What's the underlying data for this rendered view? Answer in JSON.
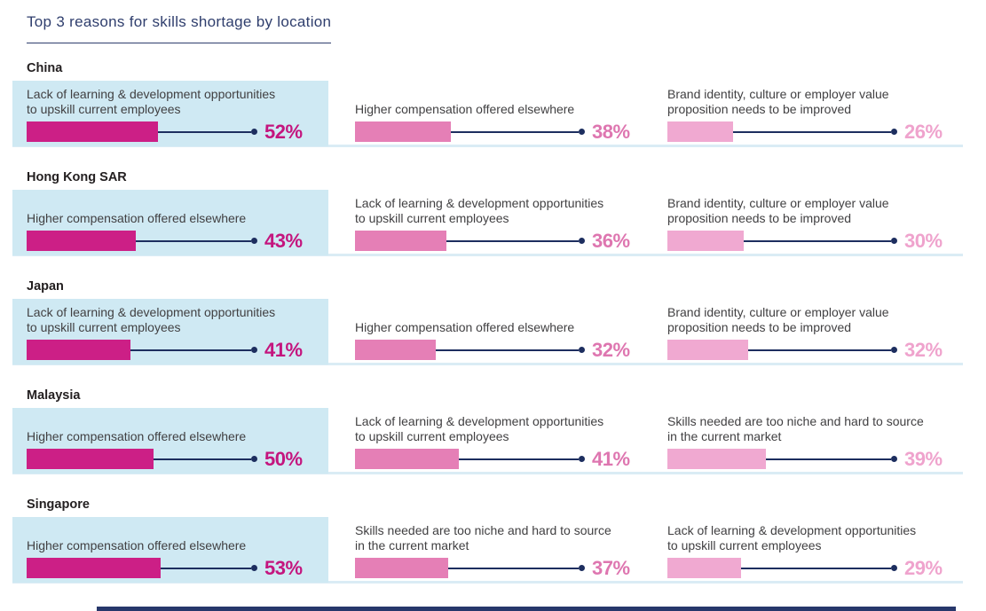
{
  "header": {
    "title": "Top 3 reasons for skills shortage by location"
  },
  "colors": {
    "title_navy": "#2F3E6D",
    "connector_navy": "#1D2E5F",
    "highlight_panel_blue": "#CFE9F3",
    "separator_blue": "#DAECF5",
    "bar_colors": [
      "#CC1F86",
      "#E57FB6",
      "#F0A9D1"
    ],
    "pct_colors": [
      "#C4157E",
      "#DE76B0",
      "#EFA3CD"
    ]
  },
  "chart_data": {
    "type": "bar",
    "title": "Top 3 reasons for skills shortage by location",
    "unit": "%",
    "value_range": [
      0,
      100
    ],
    "orientation": "horizontal",
    "legend": "none",
    "locations": [
      {
        "name": "China",
        "reasons": [
          {
            "label": "Lack of learning & development opportunities to upskill current employees",
            "value": 52,
            "display": "52%"
          },
          {
            "label": "Higher compensation offered elsewhere",
            "value": 38,
            "display": "38%"
          },
          {
            "label": "Brand identity, culture or employer value proposition needs to be improved",
            "value": 26,
            "display": "26%"
          }
        ]
      },
      {
        "name": "Hong Kong SAR",
        "reasons": [
          {
            "label": "Higher compensation offered elsewhere",
            "value": 43,
            "display": "43%"
          },
          {
            "label": "Lack of learning & development opportunities to upskill current employees",
            "value": 36,
            "display": "36%"
          },
          {
            "label": "Brand identity, culture or employer value proposition needs to be improved",
            "value": 30,
            "display": "30%"
          }
        ]
      },
      {
        "name": "Japan",
        "reasons": [
          {
            "label": "Lack of learning & development opportunities to upskill current employees",
            "value": 41,
            "display": "41%"
          },
          {
            "label": "Higher compensation offered elsewhere",
            "value": 32,
            "display": "32%"
          },
          {
            "label": "Brand identity, culture or employer value proposition needs to be improved",
            "value": 32,
            "display": "32%"
          }
        ]
      },
      {
        "name": "Malaysia",
        "reasons": [
          {
            "label": "Higher compensation offered elsewhere",
            "value": 50,
            "display": "50%"
          },
          {
            "label": "Lack of learning & development opportunities to upskill current employees",
            "value": 41,
            "display": "41%"
          },
          {
            "label": "Skills needed are too niche and hard to source in the current market",
            "value": 39,
            "display": "39%"
          }
        ]
      },
      {
        "name": "Singapore",
        "reasons": [
          {
            "label": "Higher compensation offered elsewhere",
            "value": 53,
            "display": "53%"
          },
          {
            "label": "Skills needed are too niche and hard to source in the current market",
            "value": 37,
            "display": "37%"
          },
          {
            "label": "Lack of learning & development opportunities to upskill current employees",
            "value": 29,
            "display": "29%"
          }
        ]
      }
    ]
  }
}
